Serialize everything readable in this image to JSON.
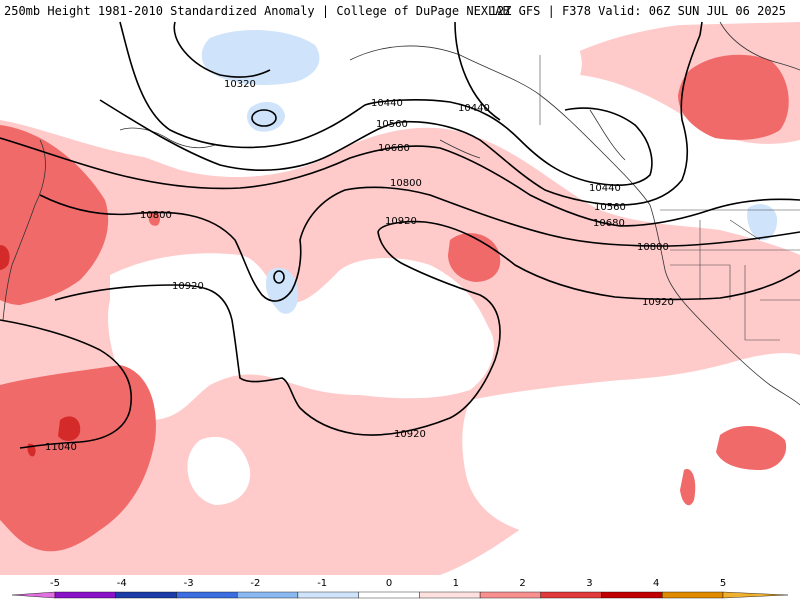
{
  "header": {
    "title_left": "250mb Height 1981-2010 Standardized Anomaly | College of DuPage NEXLAB",
    "title_right": "12Z GFS | F378 Valid: 06Z SUN JUL 06 2025"
  },
  "contours": {
    "c10320": "10320",
    "c10440": "10440",
    "c10560": "10560",
    "c10680": "10680",
    "c10800": "10800",
    "c10920": "10920",
    "c11040": "11040"
  },
  "colorbar": {
    "ticks": [
      "-5",
      "-4",
      "-3",
      "-2",
      "-1",
      "0",
      "1",
      "2",
      "3",
      "4",
      "5"
    ],
    "colors": [
      "#e070e0",
      "#8a12c8",
      "#1c3ca8",
      "#3c6ee0",
      "#8ab8f0",
      "#cfe3fa",
      "#ffffff",
      "#fde0e0",
      "#f89090",
      "#e03a3a",
      "#c00000",
      "#e08a00",
      "#f0b030"
    ]
  },
  "anomaly_colors": {
    "light_pink": "#fecaca",
    "medium_red": "#f16a6a",
    "dark_red": "#d42a2a",
    "light_blue": "#cfe3fa"
  }
}
